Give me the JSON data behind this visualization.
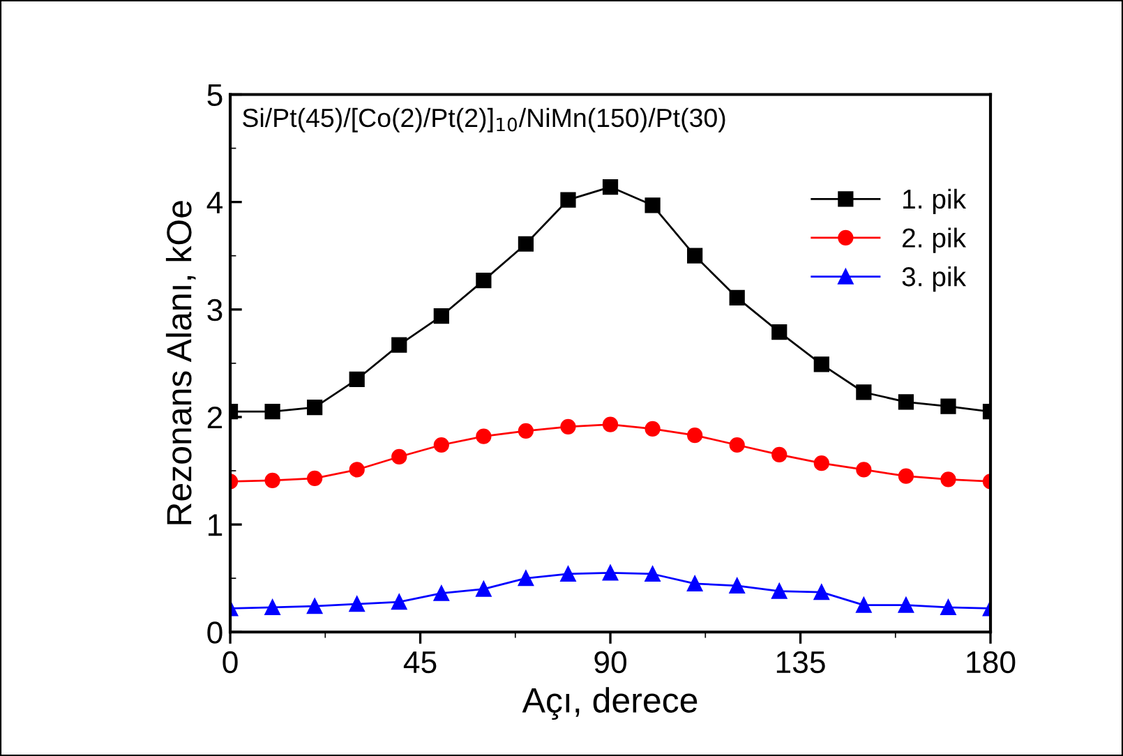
{
  "chart_data": {
    "type": "line",
    "xlabel": "Açı, derece",
    "ylabel": "Rezonans Alanı, kOe",
    "annotations": [
      "Si/Pt(45)/[Co(2)/Pt(2)]$_{10}$/NiMn(150)/Pt(30)"
    ],
    "x": [
      0,
      10,
      20,
      30,
      40,
      50,
      60,
      70,
      80,
      90,
      100,
      110,
      120,
      130,
      140,
      150,
      160,
      170,
      180
    ],
    "series": [
      {
        "name": "1. pik",
        "color": "#000000",
        "marker": "square",
        "values": [
          2.05,
          2.05,
          2.09,
          2.35,
          2.67,
          2.94,
          3.27,
          3.61,
          4.02,
          4.14,
          3.97,
          3.5,
          3.11,
          2.79,
          2.49,
          2.23,
          2.14,
          2.1,
          2.05
        ]
      },
      {
        "name": "2. pik",
        "color": "#ff0000",
        "marker": "circle",
        "values": [
          1.4,
          1.41,
          1.43,
          1.51,
          1.63,
          1.74,
          1.82,
          1.87,
          1.91,
          1.93,
          1.89,
          1.83,
          1.74,
          1.65,
          1.57,
          1.51,
          1.45,
          1.42,
          1.4
        ]
      },
      {
        "name": "3. pik",
        "color": "#0000ff",
        "marker": "triangle",
        "values": [
          0.22,
          0.23,
          0.24,
          0.26,
          0.28,
          0.36,
          0.4,
          0.5,
          0.54,
          0.55,
          0.54,
          0.45,
          0.43,
          0.38,
          0.37,
          0.25,
          0.25,
          0.23,
          0.22
        ]
      }
    ],
    "xlim": [
      0,
      180
    ],
    "xticks": [
      0,
      45,
      90,
      135,
      180
    ],
    "ylim": [
      0,
      5
    ],
    "yticks": [
      0,
      1,
      2,
      3,
      4,
      5
    ],
    "grid": false,
    "legend": "top right",
    "line_style": "solid"
  }
}
